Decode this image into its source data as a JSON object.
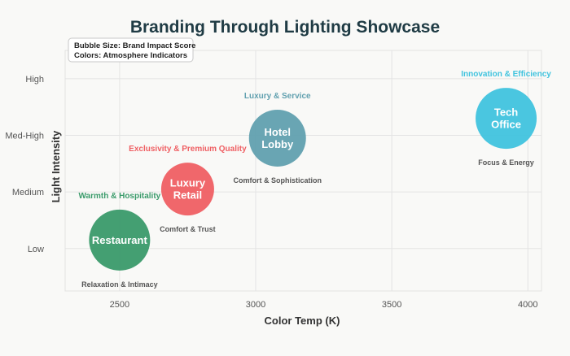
{
  "chart_data": {
    "type": "scatter",
    "title": "Branding Through Lighting Showcase",
    "xlabel": "Color Temp (K)",
    "ylabel": "Light Intensity",
    "xlim": [
      2300,
      4050
    ],
    "ylim": [
      0.25,
      4.5
    ],
    "xticks": [
      2500,
      3000,
      3500,
      4000
    ],
    "yticks": [
      {
        "value": 1,
        "label": "Low"
      },
      {
        "value": 2,
        "label": "Medium"
      },
      {
        "value": 3,
        "label": "Med-High"
      },
      {
        "value": 4,
        "label": "High"
      }
    ],
    "grid": true,
    "legend_lines": [
      "Bubble Size: Brand Impact Score",
      "Colors: Atmosphere Indicators"
    ],
    "legend_position": "top-left",
    "points": [
      {
        "name": "Restaurant",
        "label_lines": [
          "Restaurant"
        ],
        "x": 2500,
        "y": 1.15,
        "size": 7.5,
        "color": "#3a9a6a",
        "top_annotation": "Warmth & Hospitality",
        "bottom_annotation": "Relaxation & Intimacy"
      },
      {
        "name": "Luxury Retail",
        "label_lines": [
          "Luxury",
          "Retail"
        ],
        "x": 2750,
        "y": 2.05,
        "size": 6.5,
        "color": "#ef5f63",
        "top_annotation": "Exclusivity & Premium Quality",
        "bottom_annotation": "Comfort & Trust"
      },
      {
        "name": "Hotel Lobby",
        "label_lines": [
          "Hotel",
          "Lobby"
        ],
        "x": 3080,
        "y": 2.95,
        "size": 7,
        "color": "#61a0af",
        "top_annotation": "Luxury & Service",
        "bottom_annotation": "Comfort & Sophistication"
      },
      {
        "name": "Tech Office",
        "label_lines": [
          "Tech",
          "Office"
        ],
        "x": 3920,
        "y": 3.3,
        "size": 7.5,
        "color": "#40c3de",
        "top_annotation": "Innovation & Efficiency",
        "bottom_annotation": "Focus & Energy"
      }
    ]
  }
}
